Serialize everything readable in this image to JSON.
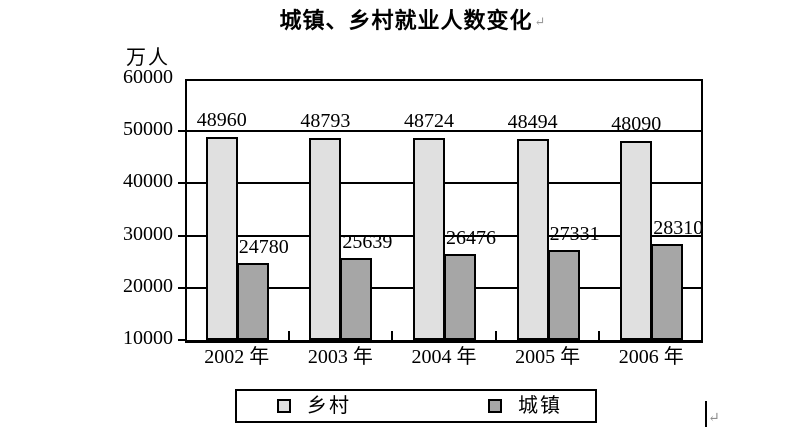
{
  "editor_marks": {
    "title_paragraph_mark": "↵",
    "end_paragraph_mark": "↵"
  },
  "chart_data": {
    "type": "bar",
    "title": "城镇、乡村就业人数变化",
    "unit_label": "万人",
    "categories": [
      "2002 年",
      "2003 年",
      "2004 年",
      "2005 年",
      "2006 年"
    ],
    "series": [
      {
        "name": "乡村",
        "color": "#e0e0e0",
        "values": [
          48960,
          48793,
          48724,
          48494,
          48090
        ]
      },
      {
        "name": "城镇",
        "color": "#a6a6a6",
        "values": [
          24780,
          25639,
          26476,
          27331,
          28310
        ]
      }
    ],
    "ylim": [
      10000,
      60000
    ],
    "yticks": [
      10000,
      20000,
      30000,
      40000,
      50000,
      60000
    ],
    "grid": true,
    "value_labels": true,
    "legend_position": "bottom",
    "axis_color": "#000000",
    "background_color": "#ffffff"
  }
}
